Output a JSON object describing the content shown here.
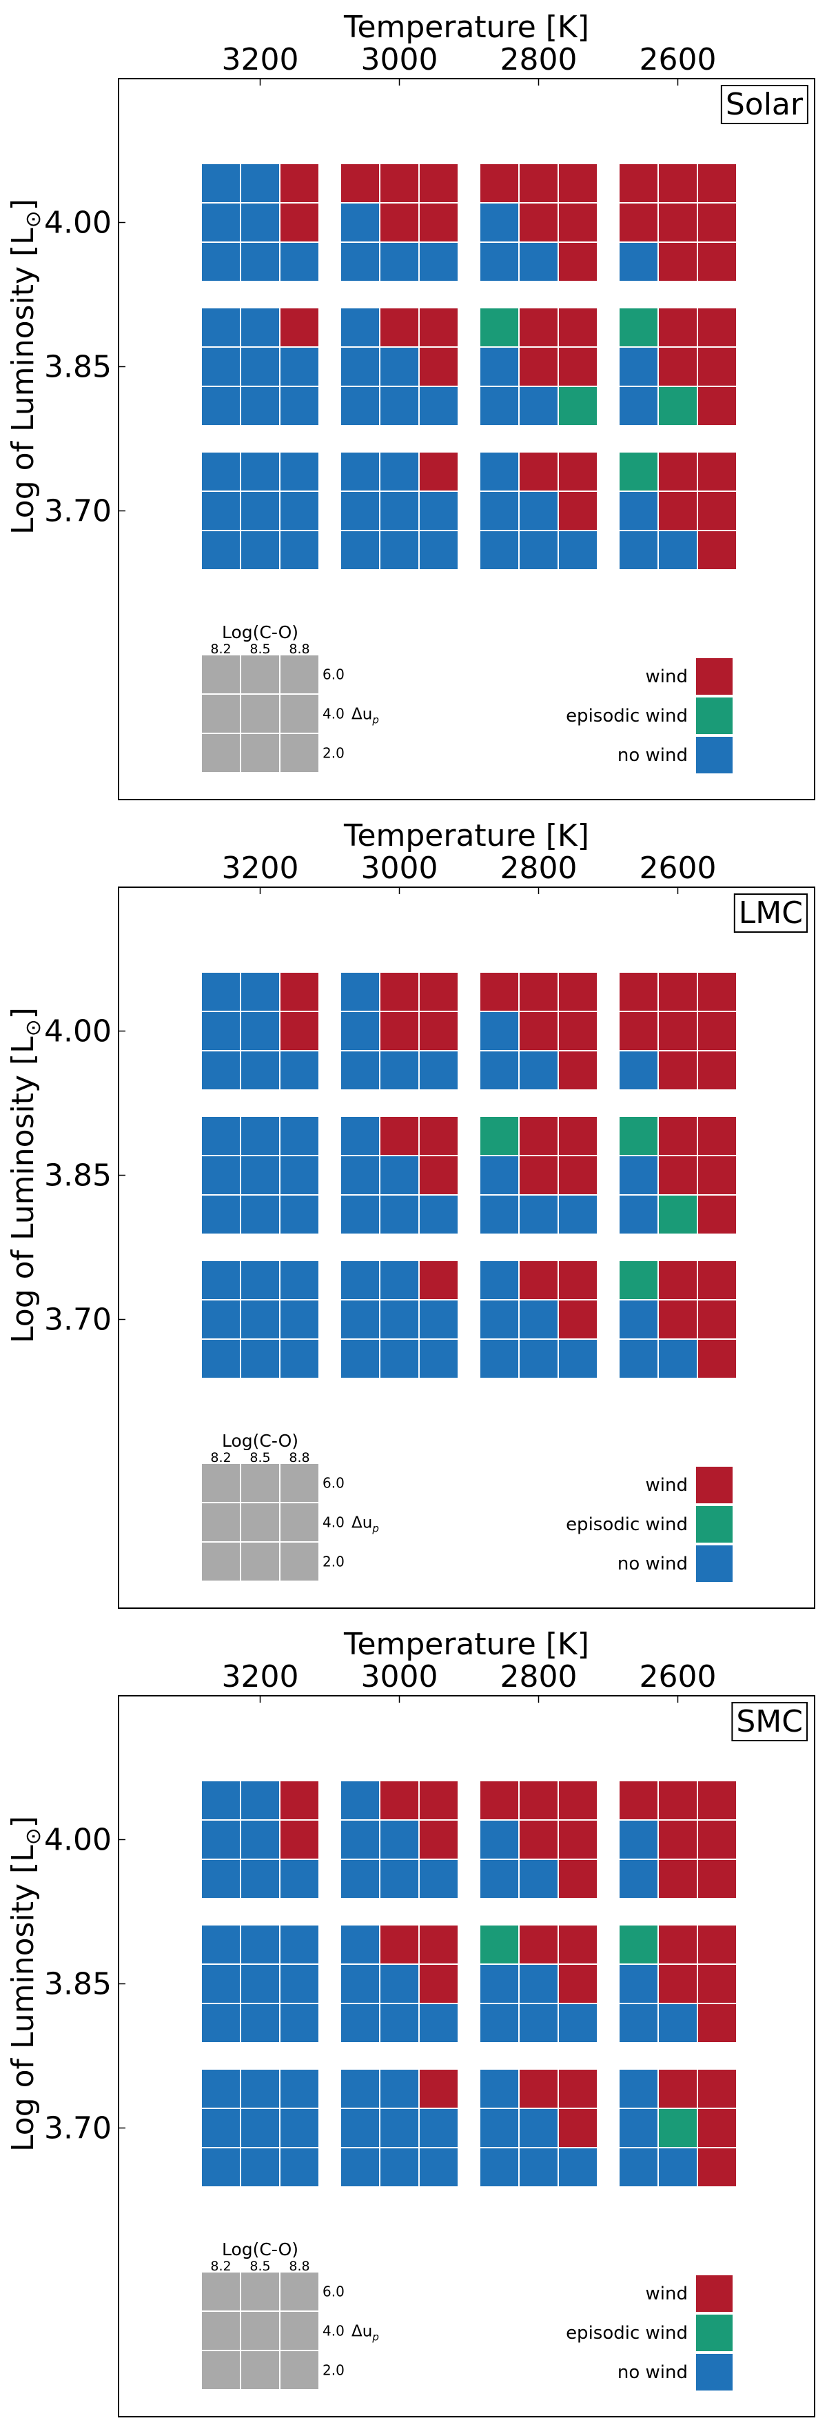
{
  "chart_data": [
    {
      "type": "heatmap",
      "panel_label": "Solar",
      "xlabel": "Temperature [K]",
      "ylabel": "Log of Luminosity [L",
      "ylabel_symbol": "⊙",
      "ylabel_close": "]",
      "temperatures": [
        "3200",
        "3000",
        "2800",
        "2600"
      ],
      "luminosities": [
        "4.00",
        "3.85",
        "3.70"
      ],
      "legend_key": {
        "title": "Log(C-O)",
        "co_values": [
          "8.2",
          "8.5",
          "8.8"
        ],
        "du_values": [
          "6.0",
          "4.0",
          "2.0"
        ],
        "du_label": "Δu",
        "du_subscript": "p"
      },
      "legend": [
        {
          "label": "wind",
          "code": "W"
        },
        {
          "label": "episodic wind",
          "code": "E"
        },
        {
          "label": "no wind",
          "code": "N"
        }
      ],
      "colors": {
        "W": "#b11b2c",
        "E": "#1a9b77",
        "N": "#1f72b8",
        "key": "#a9a9a9"
      },
      "grids": [
        [
          "NNW/NNW/NNN",
          "WWW/NWW/NNN",
          "WWW/NWW/NNW",
          "WWW/WWW/NWW"
        ],
        [
          "NNW/NNN/NNN",
          "NWW/NNW/NNN",
          "EWW/NWW/NNE",
          "EWW/NWW/NEW"
        ],
        [
          "NNN/NNN/NNN",
          "NNW/NNN/NNN",
          "NWW/NNW/NNN",
          "EWW/NWW/NNW"
        ]
      ]
    },
    {
      "type": "heatmap",
      "panel_label": "LMC",
      "xlabel": "Temperature [K]",
      "ylabel": "Log of Luminosity [L",
      "ylabel_symbol": "⊙",
      "ylabel_close": "]",
      "temperatures": [
        "3200",
        "3000",
        "2800",
        "2600"
      ],
      "luminosities": [
        "4.00",
        "3.85",
        "3.70"
      ],
      "legend_key": {
        "title": "Log(C-O)",
        "co_values": [
          "8.2",
          "8.5",
          "8.8"
        ],
        "du_values": [
          "6.0",
          "4.0",
          "2.0"
        ],
        "du_label": "Δu",
        "du_subscript": "p"
      },
      "legend": [
        {
          "label": "wind",
          "code": "W"
        },
        {
          "label": "episodic wind",
          "code": "E"
        },
        {
          "label": "no wind",
          "code": "N"
        }
      ],
      "colors": {
        "W": "#b11b2c",
        "E": "#1a9b77",
        "N": "#1f72b8",
        "key": "#a9a9a9"
      },
      "grids": [
        [
          "NNW/NNW/NNN",
          "NWW/NWW/NNN",
          "WWW/NWW/NNW",
          "WWW/WWW/NWW"
        ],
        [
          "NNN/NNN/NNN",
          "NWW/NNW/NNN",
          "EWW/NWW/NNN",
          "EWW/NWW/NEW"
        ],
        [
          "NNN/NNN/NNN",
          "NNW/NNN/NNN",
          "NWW/NNW/NNN",
          "EWW/NWW/NNW"
        ]
      ]
    },
    {
      "type": "heatmap",
      "panel_label": "SMC",
      "xlabel": "Temperature [K]",
      "ylabel": "Log of Luminosity [L",
      "ylabel_symbol": "⊙",
      "ylabel_close": "]",
      "temperatures": [
        "3200",
        "3000",
        "2800",
        "2600"
      ],
      "luminosities": [
        "4.00",
        "3.85",
        "3.70"
      ],
      "legend_key": {
        "title": "Log(C-O)",
        "co_values": [
          "8.2",
          "8.5",
          "8.8"
        ],
        "du_values": [
          "6.0",
          "4.0",
          "2.0"
        ],
        "du_label": "Δu",
        "du_subscript": "p"
      },
      "legend": [
        {
          "label": "wind",
          "code": "W"
        },
        {
          "label": "episodic wind",
          "code": "E"
        },
        {
          "label": "no wind",
          "code": "N"
        }
      ],
      "colors": {
        "W": "#b11b2c",
        "E": "#1a9b77",
        "N": "#1f72b8",
        "key": "#a9a9a9"
      },
      "grids": [
        [
          "NNW/NNW/NNN",
          "NWW/NNW/NNN",
          "WWW/NWW/NNW",
          "WWW/NWW/NWW"
        ],
        [
          "NNN/NNN/NNN",
          "NWW/NNW/NNN",
          "EWW/NNW/NNN",
          "EWW/NWW/NNW"
        ],
        [
          "NNN/NNN/NNN",
          "NNW/NNN/NNN",
          "NWW/NNW/NNN",
          "NWW/NEW/NNW"
        ]
      ]
    }
  ]
}
